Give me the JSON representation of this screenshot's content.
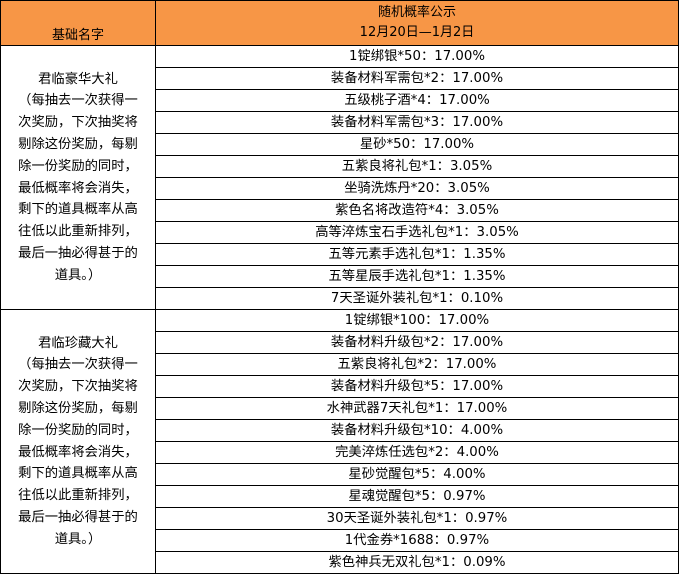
{
  "header": {
    "name_col": "基础名字",
    "title": "随机概率公示",
    "date_range": "12月20日—1月2日"
  },
  "groups": [
    {
      "name": "君临豪华大礼",
      "note_lines": [
        "（每抽去一次获得一",
        "次奖励，下次抽奖将",
        "剔除这份奖励，每剔",
        "除一份奖励的同时，",
        "最低概率将会消失，",
        "剩下的道具概率从高",
        "往低以此重新排列，",
        "最后一抽必得甚于的",
        "道具。）"
      ],
      "items": [
        "1锭绑银*50：17.00%",
        "装备材料军需包*2：17.00%",
        "五级桃子酒*4：17.00%",
        "装备材料军需包*3：17.00%",
        "星砂*50：17.00%",
        "五紫良将礼包*1：3.05%",
        "坐骑洗炼丹*20：3.05%",
        "紫色名将改造符*4：3.05%",
        "高等淬炼宝石手选礼包*1：3.05%",
        "五等元素手选礼包*1：1.35%",
        "五等星辰手选礼包*1：1.35%",
        "7天圣诞外装礼包*1：0.10%"
      ]
    },
    {
      "name": "君临珍藏大礼",
      "note_lines": [
        "（每抽去一次获得一",
        "次奖励，下次抽奖将",
        "剔除这份奖励，每剔",
        "除一份奖励的同时，",
        "最低概率将会消失，",
        "剩下的道具概率从高",
        "往低以此重新排列，",
        "最后一抽必得甚于的",
        "道具。）"
      ],
      "items": [
        "1锭绑银*100：17.00%",
        "装备材料升级包*2：17.00%",
        "五紫良将礼包*2：17.00%",
        "装备材料升级包*5：17.00%",
        "水神武器7天礼包*1：17.00%",
        "装备材料升级包*10：4.00%",
        "完美淬炼任选包*2：4.00%",
        "星砂觉醒包*5：4.00%",
        "星魂觉醒包*5：0.97%",
        "30天圣诞外装礼包*1：0.97%",
        "1代金券*1688：0.97%",
        "紫色神兵无双礼包*1：0.09%"
      ]
    }
  ],
  "colors": {
    "header_bg": "#f79646",
    "border": "#000000"
  }
}
